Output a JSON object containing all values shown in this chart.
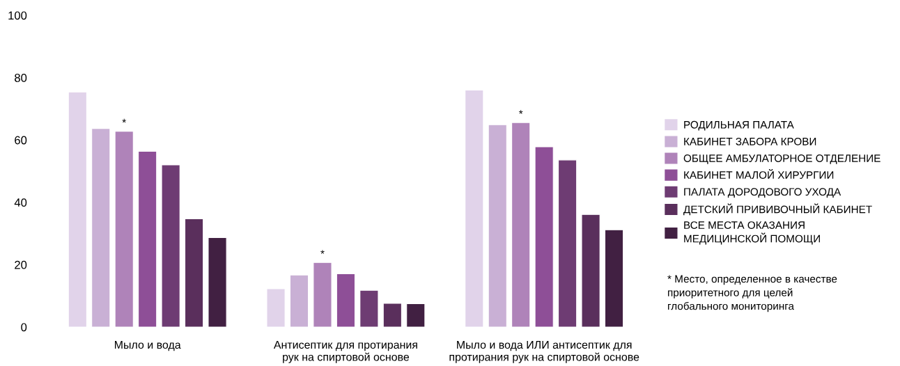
{
  "chart_data": {
    "type": "bar",
    "categories": [
      "Мыло и вода",
      "Антисептик для протирания\nрук на спиртовой основе",
      "Мыло и вода ИЛИ антисептик для\nпротирания рук на спиртовой основе"
    ],
    "series": [
      {
        "name": "РОДИЛЬНАЯ ПАЛАТА",
        "color": "#e1d3ea",
        "values": [
          75.4,
          12.3,
          76.0
        ]
      },
      {
        "name": "КАБИНЕТ ЗАБОРА КРОВИ",
        "color": "#c9b0d5",
        "values": [
          63.7,
          16.7,
          64.9
        ]
      },
      {
        "name": "ОБЩЕЕ АМБУЛАТОРНОЕ ОТДЕЛЕНИЕ",
        "color": "#af83b9",
        "values": [
          62.8,
          20.7,
          65.6
        ],
        "value_labels": [
          "*",
          "*",
          "*"
        ]
      },
      {
        "name": "КАБИНЕТ МАЛОЙ ХИРУРГИИ",
        "color": "#8e4f97",
        "values": [
          56.4,
          17.1,
          57.8
        ]
      },
      {
        "name": "ПАЛАТА ДОРОДОВОГО УХОДА",
        "color": "#6e3c73",
        "values": [
          52.0,
          11.8,
          53.6
        ]
      },
      {
        "name": "ДЕТСКИЙ ПРИВИВОЧНЫЙ КАБИНЕТ",
        "color": "#5a2f5c",
        "values": [
          34.7,
          7.6,
          36.1
        ]
      },
      {
        "name": "ВСЕ МЕСТА ОКАЗАНИЯ\nМЕДИЦИНСКОЙ ПОМОЩИ",
        "color": "#412042",
        "values": [
          28.7,
          7.5,
          31.2
        ]
      }
    ],
    "ylim": [
      0,
      100
    ],
    "yticks": [
      0,
      20,
      40,
      60,
      80,
      100
    ],
    "legend": "right",
    "grid": false,
    "annotations": [
      "* Место, определенное в качестве\nприоритетного для целей\nглобального мониторинга"
    ]
  }
}
